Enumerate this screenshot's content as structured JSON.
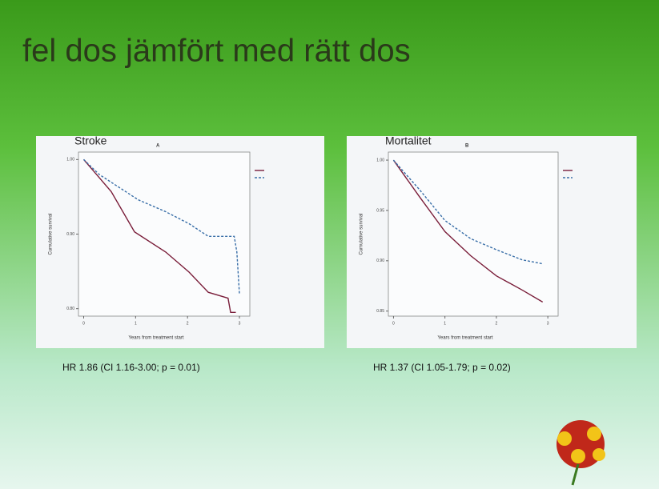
{
  "slide_title": "fel dos jämfört med rätt dos",
  "chart_data": [
    {
      "type": "line",
      "title": "Stroke",
      "panel_label": "A",
      "xlabel": "Years from treatment start",
      "ylabel": "Cumulative survival",
      "caption": "HR 1.86 (CI 1.16-3.00; p = 0.01)",
      "xlim": [
        -0.1,
        3.2
      ],
      "xticks": [
        0,
        1,
        2,
        3
      ],
      "ylim": [
        0.79,
        1.01
      ],
      "yticks": [
        {
          "value": 0.8,
          "label": "0.80"
        },
        {
          "value": 0.9,
          "label": "0.90"
        },
        {
          "value": 1.0,
          "label": "1.00"
        }
      ],
      "series": [
        {
          "color": "#7a1e3a",
          "dashed": false,
          "x": [
            0,
            0.53,
            0.98,
            1.58,
            2.03,
            2.4,
            2.78,
            2.83,
            2.93
          ],
          "values": [
            1.0,
            0.957,
            0.903,
            0.876,
            0.849,
            0.822,
            0.814,
            0.795,
            0.795
          ]
        },
        {
          "color": "#3a6fa8",
          "dashed": true,
          "x": [
            0,
            0.3,
            1.05,
            1.58,
            2.03,
            2.4,
            2.9,
            2.95,
            3.0
          ],
          "values": [
            1.0,
            0.98,
            0.946,
            0.93,
            0.914,
            0.897,
            0.897,
            0.876,
            0.82
          ]
        }
      ]
    },
    {
      "type": "line",
      "title": "Mortalitet",
      "panel_label": "B",
      "xlabel": "Years from treatment start",
      "ylabel": "Cumulative survival",
      "caption": "HR 1.37 (CI 1.05-1.79; p = 0.02)",
      "xlim": [
        -0.1,
        3.2
      ],
      "xticks": [
        0,
        1,
        2,
        3
      ],
      "ylim": [
        0.845,
        1.008
      ],
      "yticks": [
        {
          "value": 0.85,
          "label": "0.85"
        },
        {
          "value": 0.9,
          "label": "0.90"
        },
        {
          "value": 0.95,
          "label": "0.95"
        },
        {
          "value": 1.0,
          "label": "1.00"
        }
      ],
      "series": [
        {
          "color": "#7a1e3a",
          "dashed": false,
          "x": [
            0,
            0.5,
            1,
            1.5,
            2,
            2.5,
            2.9
          ],
          "values": [
            1.0,
            0.964,
            0.929,
            0.905,
            0.885,
            0.871,
            0.859
          ]
        },
        {
          "color": "#3a6fa8",
          "dashed": true,
          "x": [
            0,
            0.5,
            1,
            1.5,
            2,
            2.5,
            2.9
          ],
          "values": [
            1.0,
            0.971,
            0.94,
            0.922,
            0.911,
            0.901,
            0.897
          ]
        }
      ]
    }
  ]
}
